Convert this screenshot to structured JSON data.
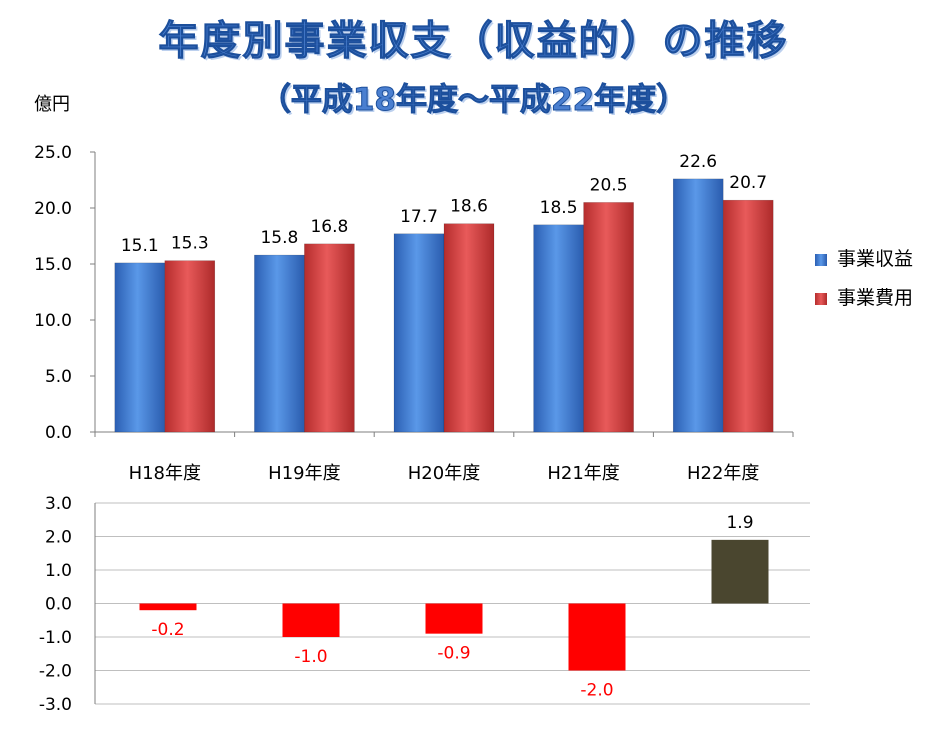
{
  "title": "年度別事業収支（収益的）の推移",
  "subtitle": "（平成18年度～平成22年度）",
  "unit_label": "億円",
  "colors": {
    "revenue": "#3b78d2",
    "expense": "#d13d3d",
    "negative": "#ff0000",
    "positive": "#4a462f"
  },
  "chart_data": [
    {
      "type": "bar",
      "categories": [
        "H18年度",
        "H19年度",
        "H20年度",
        "H21年度",
        "H22年度"
      ],
      "series": [
        {
          "name": "事業収益",
          "values": [
            15.1,
            15.8,
            17.7,
            18.5,
            22.6
          ]
        },
        {
          "name": "事業費用",
          "values": [
            15.3,
            16.8,
            18.6,
            20.5,
            20.7
          ]
        }
      ],
      "ylabel": "億円",
      "ylim": [
        0,
        25
      ],
      "yticks": [
        "0.0",
        "5.0",
        "10.0",
        "15.0",
        "20.0",
        "25.0"
      ],
      "value_labels": [
        [
          "15.1",
          "15.8",
          "17.7",
          "18.5",
          "22.6"
        ],
        [
          "15.3",
          "16.8",
          "18.6",
          "20.5",
          "20.7"
        ]
      ],
      "grid": false,
      "legend": "right"
    },
    {
      "type": "bar",
      "categories": [
        "H18年度",
        "H19年度",
        "H20年度",
        "H21年度",
        "H22年度"
      ],
      "values": [
        -0.2,
        -1.0,
        -0.9,
        -2.0,
        1.9
      ],
      "value_labels": [
        "-0.2",
        "-1.0",
        "-0.9",
        "-2.0",
        "1.9"
      ],
      "ylim": [
        -3,
        3
      ],
      "yticks": [
        "-3.0",
        "-2.0",
        "-1.0",
        "0.0",
        "1.0",
        "2.0",
        "3.0"
      ],
      "grid": true
    }
  ]
}
